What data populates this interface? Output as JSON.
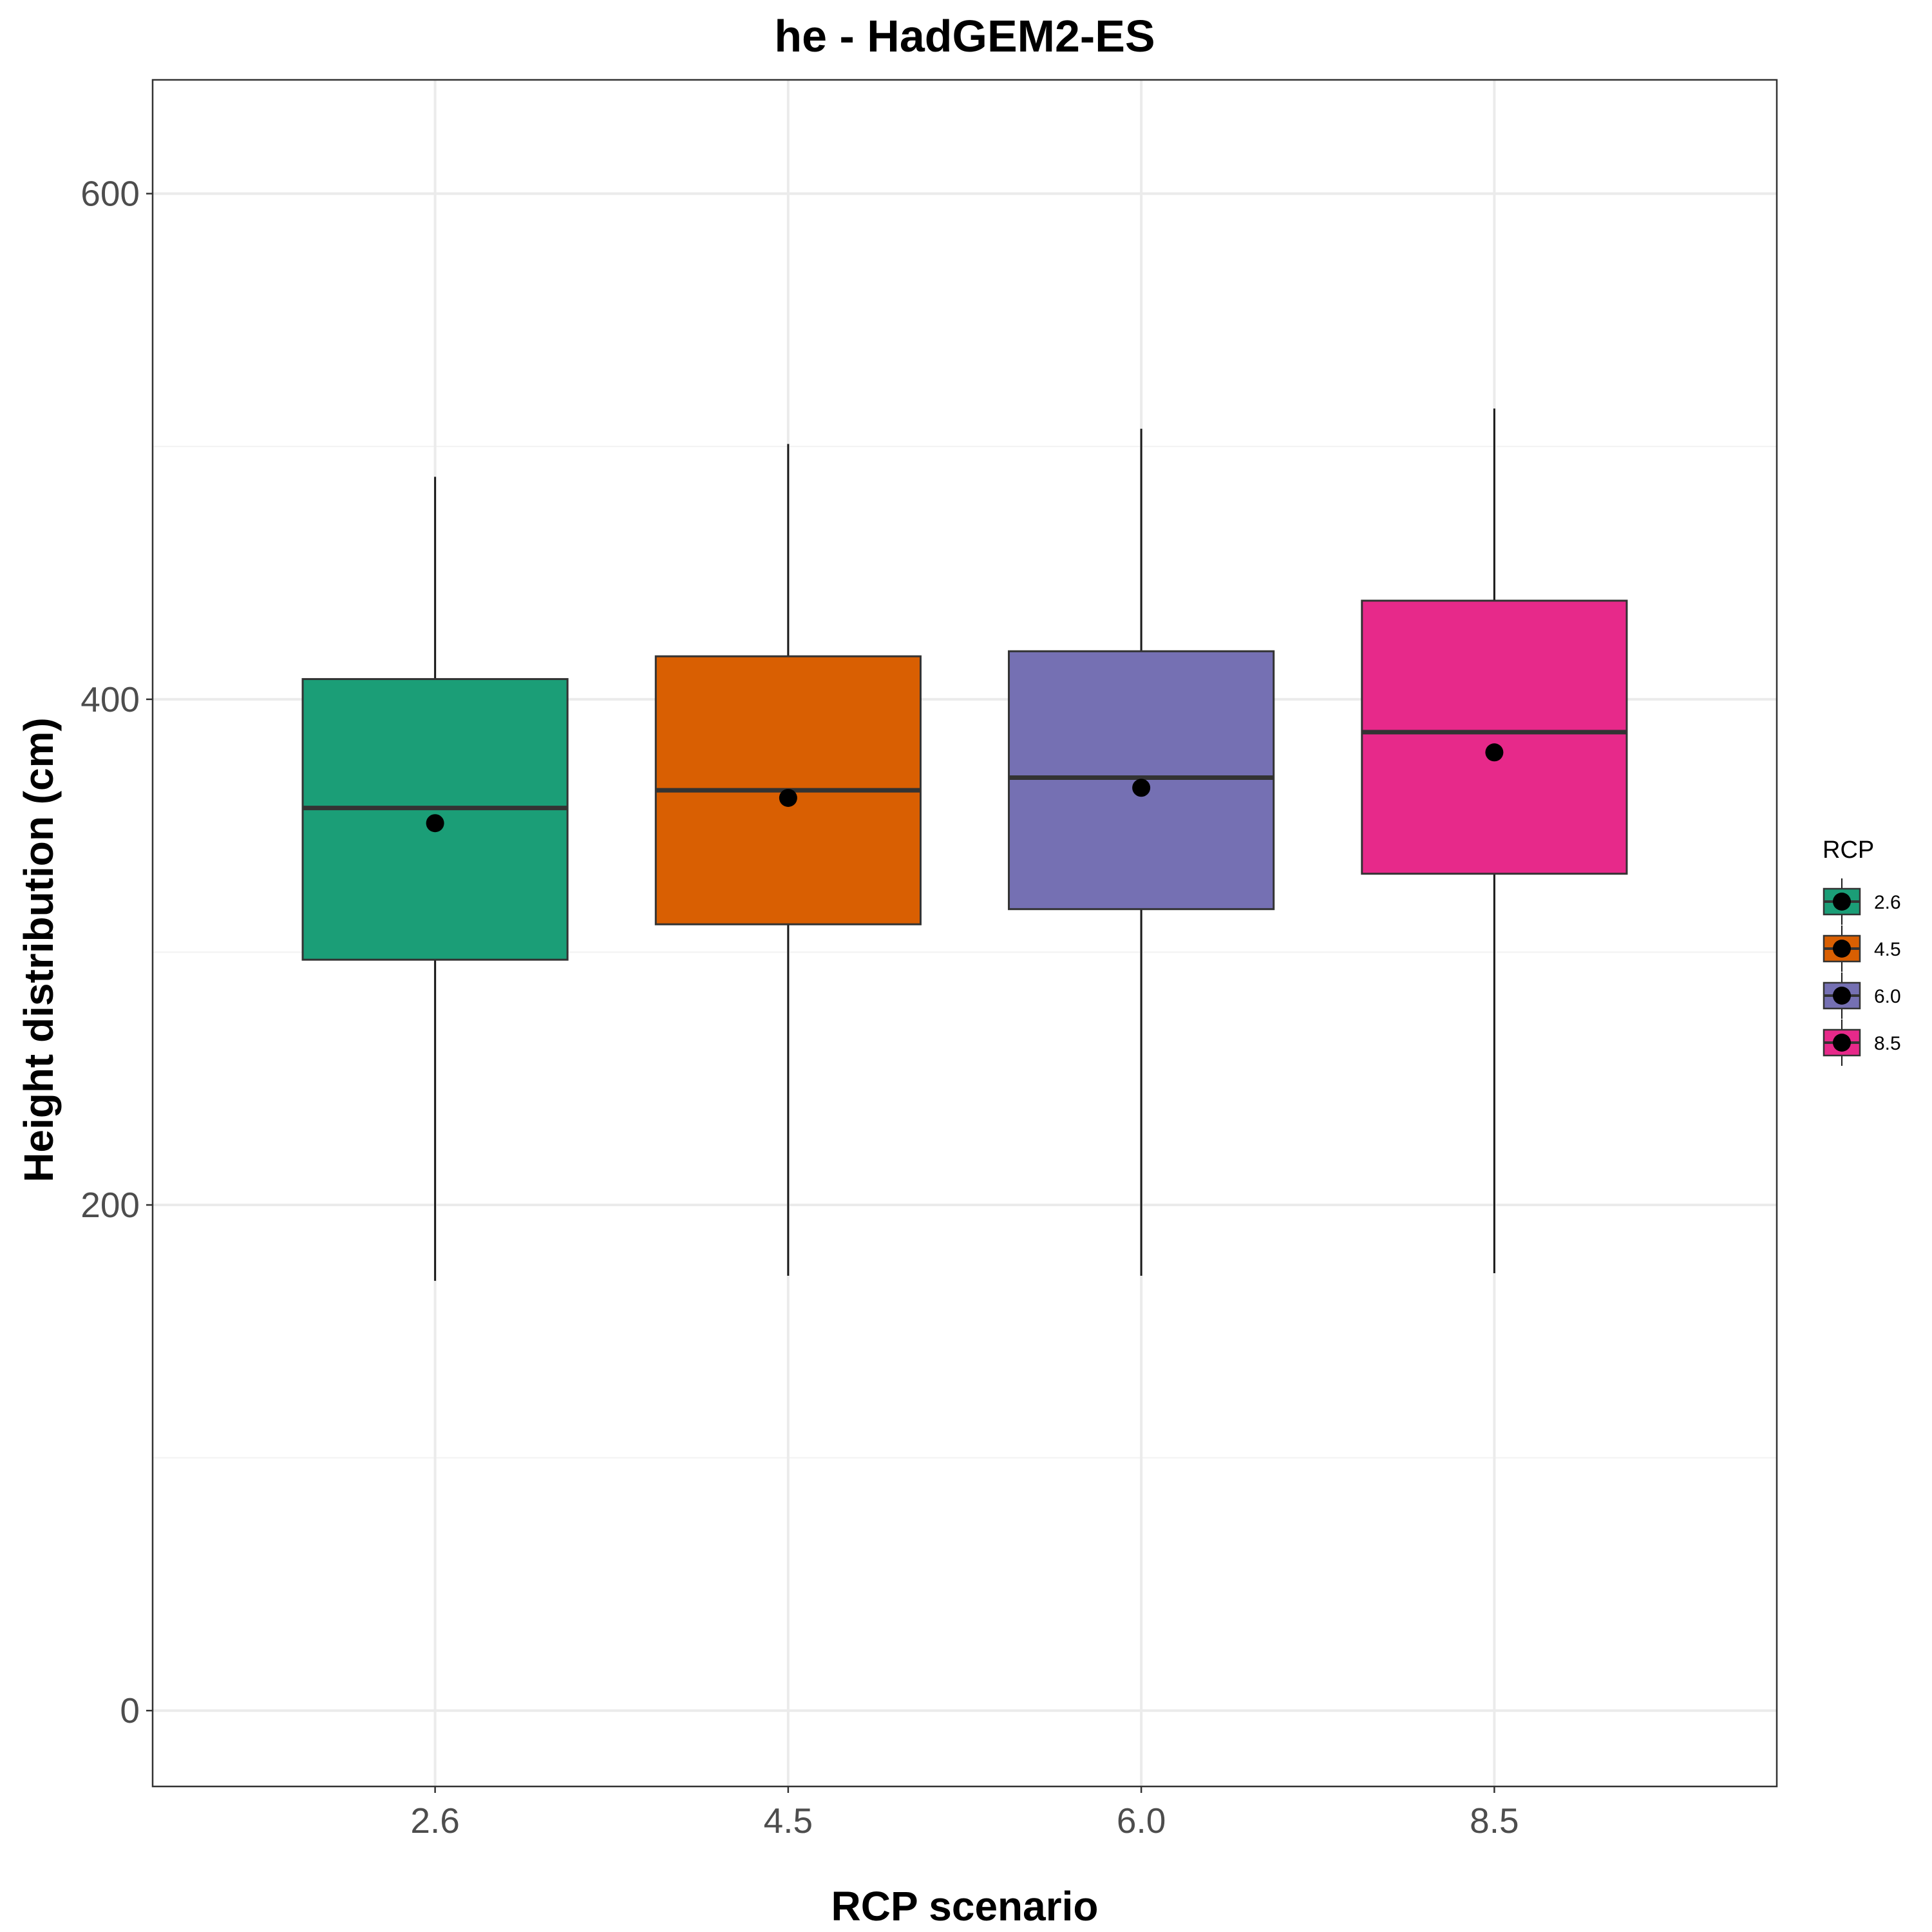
{
  "chart_data": {
    "type": "boxplot",
    "title": "he - HadGEM2-ES",
    "xlabel": "RCP scenario",
    "ylabel": "Height distribution (cm)",
    "categories": [
      "2.6",
      "4.5",
      "6.0",
      "8.5"
    ],
    "ylim": [
      -30,
      645
    ],
    "y_ticks": [
      0,
      200,
      400,
      600
    ],
    "y_tick_labels": [
      "0",
      "200",
      "400",
      "600"
    ],
    "grid": true,
    "boxes": [
      {
        "category": "2.6",
        "whisker_low": 170,
        "q1": 297,
        "median": 357,
        "q3": 408,
        "whisker_high": 488,
        "mean": 351,
        "color": "#1b9e77"
      },
      {
        "category": "4.5",
        "whisker_low": 172,
        "q1": 311,
        "median": 364,
        "q3": 417,
        "whisker_high": 501,
        "mean": 361,
        "color": "#d95f02"
      },
      {
        "category": "6.0",
        "whisker_low": 172,
        "q1": 317,
        "median": 369,
        "q3": 419,
        "whisker_high": 507,
        "mean": 365,
        "color": "#7570b3"
      },
      {
        "category": "8.5",
        "whisker_low": 173,
        "q1": 331,
        "median": 387,
        "q3": 439,
        "whisker_high": 515,
        "mean": 379,
        "color": "#e7298a"
      }
    ],
    "legend": {
      "title": "RCP",
      "placement": "right",
      "entries": [
        "2.6",
        "4.5",
        "6.0",
        "8.5"
      ]
    }
  }
}
